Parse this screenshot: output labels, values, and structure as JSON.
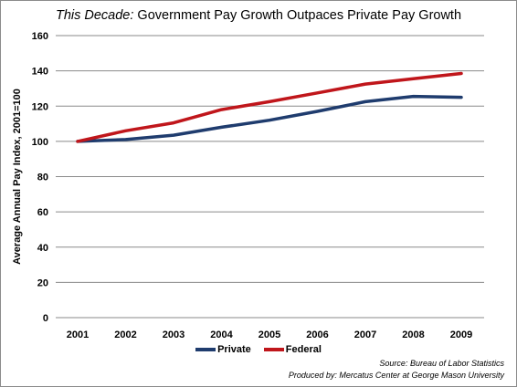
{
  "chart_data": {
    "type": "line",
    "title_lead": "This Decade:",
    "title_rest": " Government Pay Growth Outpaces Private Pay  Growth",
    "ylabel": "Average Annual Pay Index, 2001=100",
    "xlabel": "",
    "ylim": [
      0,
      160
    ],
    "yticks": [
      0,
      20,
      40,
      60,
      80,
      100,
      120,
      140,
      160
    ],
    "categories": [
      "2001",
      "2002",
      "2003",
      "2004",
      "2005",
      "2006",
      "2007",
      "2008",
      "2009"
    ],
    "grid": true,
    "legend_position": "bottom",
    "series": [
      {
        "name": "Private",
        "color": "#1f3c6e",
        "values": [
          100,
          101,
          103.5,
          108,
          112,
          117,
          122.5,
          125.5,
          125
        ]
      },
      {
        "name": "Federal",
        "color": "#c0161b",
        "values": [
          100,
          106,
          110.5,
          118,
          122.5,
          127.5,
          132.5,
          135.5,
          138.5
        ]
      }
    ]
  },
  "source_line": "Source: Bureau of Labor Statistics",
  "produced_line": "Produced by: Mercatus Center at George Mason University"
}
